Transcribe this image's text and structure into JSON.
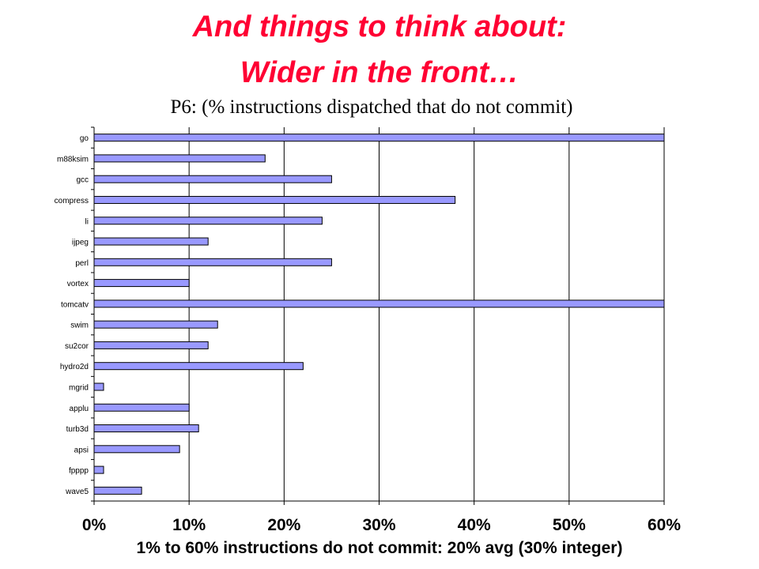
{
  "slide": {
    "title_line1": "And things to think about:",
    "title_line2": "Wider in the front…"
  },
  "chart_data": {
    "type": "bar",
    "orientation": "horizontal",
    "title": "P6:  (% instructions dispatched that do not commit)",
    "xlabel": "1% to 60% instructions do not commit: 20% avg (30% integer)",
    "ylabel": "",
    "categories": [
      "go",
      "m88ksim",
      "gcc",
      "compress",
      "li",
      "ijpeg",
      "perl",
      "vortex",
      "tomcatv",
      "swim",
      "su2cor",
      "hydro2d",
      "mgrid",
      "applu",
      "turb3d",
      "apsi",
      "fpppp",
      "wave5"
    ],
    "values": [
      60,
      18,
      25,
      38,
      24,
      12,
      25,
      10,
      60,
      13,
      12,
      22,
      1,
      10,
      11,
      9,
      1,
      5
    ],
    "xlim": [
      0,
      60
    ],
    "xticks": [
      "0%",
      "10%",
      "20%",
      "30%",
      "40%",
      "50%",
      "60%"
    ],
    "grid": "vertical",
    "legend": "none",
    "colors": {
      "bar_fill": "#9999ff",
      "bar_stroke": "#000000",
      "grid": "#000000"
    }
  }
}
